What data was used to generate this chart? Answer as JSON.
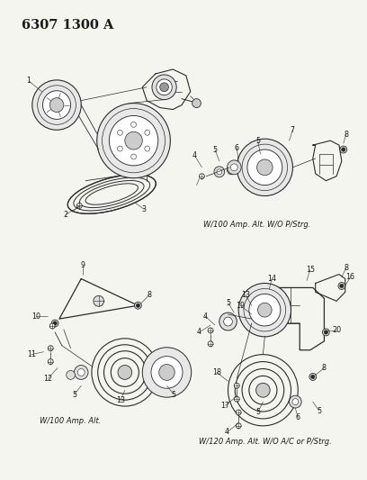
{
  "title": "6307 1300 A",
  "bg_color": "#f5f5f0",
  "line_color": "#2a2a2a",
  "text_color": "#1a1a1a",
  "caption_tr": "W/100 Amp. Alt. W/O P/Strg.",
  "caption_bl": "W/100 Amp. Alt.",
  "caption_br": "W/120 Amp. Alt. W/O A/C or P/Strg.",
  "title_fontsize": 10.5,
  "label_fontsize": 5.8,
  "caption_fontsize": 6.0
}
